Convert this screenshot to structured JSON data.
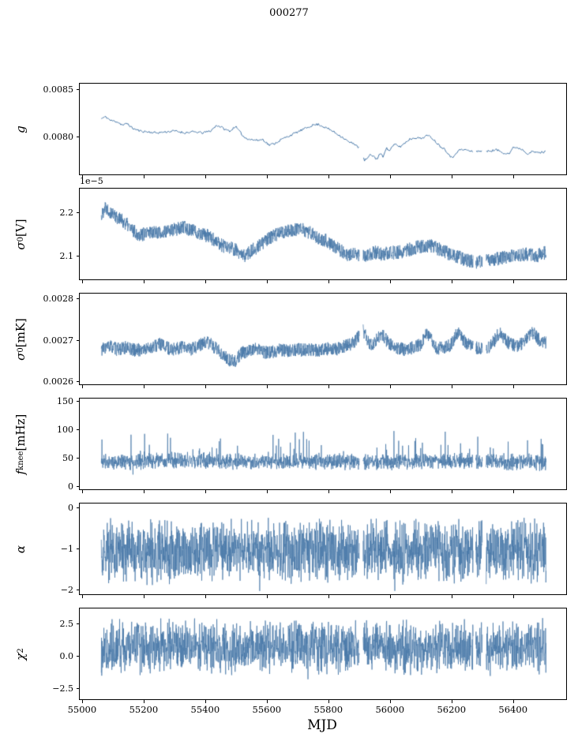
{
  "title": "000277",
  "chart_data": {
    "type": "line",
    "title": "000277",
    "line_color": "#4878a8",
    "grid": false,
    "legend": "none",
    "x": {
      "label": "MJD",
      "lim": [
        54990,
        56570
      ],
      "data_start": 55060,
      "data_end": 56505,
      "gaps": [
        [
          55898,
          55910
        ],
        [
          56268,
          56276
        ],
        [
          56298,
          56310
        ]
      ],
      "ticks": [
        {
          "v": 55000,
          "label": "55000"
        },
        {
          "v": 55200,
          "label": "55200"
        },
        {
          "v": 55400,
          "label": "55400"
        },
        {
          "v": 55600,
          "label": "55600"
        },
        {
          "v": 55800,
          "label": "55800"
        },
        {
          "v": 56000,
          "label": "56000"
        },
        {
          "v": 56200,
          "label": "56200"
        },
        {
          "v": 56400,
          "label": "56400"
        }
      ]
    },
    "panels": [
      {
        "name": "g",
        "ylabel_text": "g",
        "label": {
          "it": "g"
        },
        "ylim": [
          0.0076,
          0.00856
        ],
        "yticks": [
          {
            "v": 0.0085,
            "label": "0.0085"
          },
          {
            "v": 0.008,
            "label": "0.0080"
          }
        ],
        "noise": 1.2e-05,
        "noise_type": "uniform",
        "trend": [
          [
            55060,
            0.00819
          ],
          [
            55075,
            0.00821
          ],
          [
            55090,
            0.00817
          ],
          [
            55110,
            0.00816
          ],
          [
            55130,
            0.00812
          ],
          [
            55145,
            0.00814
          ],
          [
            55160,
            0.00809
          ],
          [
            55185,
            0.00806
          ],
          [
            55210,
            0.00805
          ],
          [
            55240,
            0.00804
          ],
          [
            55270,
            0.00805
          ],
          [
            55300,
            0.00806
          ],
          [
            55330,
            0.00804
          ],
          [
            55360,
            0.00805
          ],
          [
            55390,
            0.00804
          ],
          [
            55415,
            0.00806
          ],
          [
            55435,
            0.00812
          ],
          [
            55450,
            0.0081
          ],
          [
            55465,
            0.00807
          ],
          [
            55480,
            0.00806
          ],
          [
            55495,
            0.00811
          ],
          [
            55510,
            0.00805
          ],
          [
            55525,
            0.00799
          ],
          [
            55545,
            0.00797
          ],
          [
            55565,
            0.00796
          ],
          [
            55585,
            0.00797
          ],
          [
            55605,
            0.00791
          ],
          [
            55625,
            0.00793
          ],
          [
            55645,
            0.00797
          ],
          [
            55665,
            0.008
          ],
          [
            55685,
            0.00803
          ],
          [
            55705,
            0.00806
          ],
          [
            55725,
            0.00809
          ],
          [
            55745,
            0.00812
          ],
          [
            55765,
            0.00813
          ],
          [
            55785,
            0.0081
          ],
          [
            55805,
            0.00807
          ],
          [
            55825,
            0.00803
          ],
          [
            55845,
            0.00799
          ],
          [
            55865,
            0.00794
          ],
          [
            55885,
            0.00792
          ],
          [
            55900,
            0.00787
          ],
          [
            55908,
            0.00779
          ],
          [
            55915,
            0.00775
          ],
          [
            55925,
            0.00777
          ],
          [
            55935,
            0.00781
          ],
          [
            55945,
            0.00779
          ],
          [
            55955,
            0.00776
          ],
          [
            55965,
            0.00782
          ],
          [
            55975,
            0.00779
          ],
          [
            55985,
            0.00788
          ],
          [
            55995,
            0.00785
          ],
          [
            56005,
            0.00789
          ],
          [
            56015,
            0.00792
          ],
          [
            56030,
            0.00789
          ],
          [
            56045,
            0.00793
          ],
          [
            56060,
            0.00797
          ],
          [
            56080,
            0.00799
          ],
          [
            56100,
            0.00798
          ],
          [
            56115,
            0.00801
          ],
          [
            56130,
            0.008
          ],
          [
            56145,
            0.00795
          ],
          [
            56160,
            0.0079
          ],
          [
            56175,
            0.00787
          ],
          [
            56190,
            0.00781
          ],
          [
            56200,
            0.00777
          ],
          [
            56212,
            0.00783
          ],
          [
            56225,
            0.00786
          ],
          [
            56245,
            0.00786
          ],
          [
            56265,
            0.00784
          ],
          [
            56285,
            0.00785
          ],
          [
            56305,
            0.00784
          ],
          [
            56325,
            0.00785
          ],
          [
            56345,
            0.00786
          ],
          [
            56365,
            0.00783
          ],
          [
            56385,
            0.00782
          ],
          [
            56400,
            0.00789
          ],
          [
            56415,
            0.00788
          ],
          [
            56430,
            0.00786
          ],
          [
            56445,
            0.00782
          ],
          [
            56460,
            0.00784
          ],
          [
            56480,
            0.00783
          ],
          [
            56505,
            0.00784
          ]
        ]
      },
      {
        "name": "sigma0_V",
        "ylabel_text": "σ0 [V]",
        "label": {
          "it": "σ",
          "sub": "0",
          "post": " [V]"
        },
        "offset": "1e−5",
        "ylim": [
          2.046,
          2.255
        ],
        "yticks": [
          {
            "v": 2.2,
            "label": "2.2"
          },
          {
            "v": 2.1,
            "label": "2.1"
          }
        ],
        "noise": 0.016,
        "noise_type": "uniform",
        "trend": [
          [
            55060,
            2.19
          ],
          [
            55072,
            2.215
          ],
          [
            55085,
            2.205
          ],
          [
            55100,
            2.195
          ],
          [
            55120,
            2.185
          ],
          [
            55140,
            2.175
          ],
          [
            55160,
            2.16
          ],
          [
            55180,
            2.15
          ],
          [
            55205,
            2.15
          ],
          [
            55230,
            2.158
          ],
          [
            55255,
            2.152
          ],
          [
            55280,
            2.158
          ],
          [
            55305,
            2.162
          ],
          [
            55330,
            2.165
          ],
          [
            55355,
            2.16
          ],
          [
            55380,
            2.152
          ],
          [
            55405,
            2.146
          ],
          [
            55430,
            2.135
          ],
          [
            55455,
            2.123
          ],
          [
            55480,
            2.118
          ],
          [
            55500,
            2.112
          ],
          [
            55518,
            2.098
          ],
          [
            55535,
            2.105
          ],
          [
            55555,
            2.115
          ],
          [
            55575,
            2.125
          ],
          [
            55595,
            2.135
          ],
          [
            55615,
            2.145
          ],
          [
            55640,
            2.153
          ],
          [
            55665,
            2.158
          ],
          [
            55690,
            2.162
          ],
          [
            55715,
            2.16
          ],
          [
            55740,
            2.152
          ],
          [
            55765,
            2.143
          ],
          [
            55790,
            2.135
          ],
          [
            55815,
            2.124
          ],
          [
            55840,
            2.112
          ],
          [
            55862,
            2.1
          ],
          [
            55880,
            2.104
          ],
          [
            55900,
            2.098
          ],
          [
            55925,
            2.103
          ],
          [
            55950,
            2.108
          ],
          [
            55975,
            2.104
          ],
          [
            56000,
            2.107
          ],
          [
            56025,
            2.109
          ],
          [
            56050,
            2.112
          ],
          [
            56075,
            2.118
          ],
          [
            56100,
            2.122
          ],
          [
            56125,
            2.124
          ],
          [
            56150,
            2.118
          ],
          [
            56175,
            2.11
          ],
          [
            56200,
            2.102
          ],
          [
            56225,
            2.096
          ],
          [
            56250,
            2.09
          ],
          [
            56275,
            2.086
          ],
          [
            56300,
            2.086
          ],
          [
            56325,
            2.09
          ],
          [
            56350,
            2.094
          ],
          [
            56375,
            2.098
          ],
          [
            56400,
            2.1
          ],
          [
            56425,
            2.102
          ],
          [
            56450,
            2.104
          ],
          [
            56475,
            2.1
          ],
          [
            56505,
            2.108
          ]
        ]
      },
      {
        "name": "sigma0_mK",
        "ylabel_text": "σ0 [mK]",
        "label": {
          "it": "σ",
          "sub": "0",
          "post": " [mK]"
        },
        "ylim": [
          0.002594,
          0.002812
        ],
        "yticks": [
          {
            "v": 0.0028,
            "label": "0.0028"
          },
          {
            "v": 0.0027,
            "label": "0.0027"
          },
          {
            "v": 0.0026,
            "label": "0.0026"
          }
        ],
        "noise": 1.6e-05,
        "noise_type": "uniform",
        "trend": [
          [
            55060,
            0.002678
          ],
          [
            55090,
            0.002686
          ],
          [
            55110,
            0.002678
          ],
          [
            55140,
            0.002682
          ],
          [
            55170,
            0.002676
          ],
          [
            55200,
            0.002678
          ],
          [
            55230,
            0.002684
          ],
          [
            55250,
            0.002692
          ],
          [
            55265,
            0.002684
          ],
          [
            55290,
            0.002678
          ],
          [
            55320,
            0.002682
          ],
          [
            55350,
            0.002678
          ],
          [
            55380,
            0.002688
          ],
          [
            55400,
            0.002696
          ],
          [
            55420,
            0.002688
          ],
          [
            55445,
            0.002672
          ],
          [
            55470,
            0.002654
          ],
          [
            55495,
            0.00265
          ],
          [
            55515,
            0.002668
          ],
          [
            55540,
            0.002676
          ],
          [
            55565,
            0.00268
          ],
          [
            55590,
            0.00267
          ],
          [
            55615,
            0.002672
          ],
          [
            55640,
            0.002678
          ],
          [
            55665,
            0.002674
          ],
          [
            55690,
            0.002678
          ],
          [
            55715,
            0.002676
          ],
          [
            55740,
            0.002678
          ],
          [
            55765,
            0.002674
          ],
          [
            55790,
            0.00268
          ],
          [
            55815,
            0.002676
          ],
          [
            55840,
            0.002684
          ],
          [
            55865,
            0.002688
          ],
          [
            55885,
            0.002696
          ],
          [
            55898,
            0.002712
          ],
          [
            55908,
            0.002728
          ],
          [
            55918,
            0.002712
          ],
          [
            55932,
            0.002692
          ],
          [
            55945,
            0.002688
          ],
          [
            55958,
            0.002708
          ],
          [
            55972,
            0.002716
          ],
          [
            55985,
            0.0027
          ],
          [
            56000,
            0.00269
          ],
          [
            56020,
            0.002682
          ],
          [
            56045,
            0.002678
          ],
          [
            56070,
            0.002682
          ],
          [
            56095,
            0.002688
          ],
          [
            56110,
            0.00271
          ],
          [
            56120,
            0.002718
          ],
          [
            56132,
            0.0027
          ],
          [
            56150,
            0.002682
          ],
          [
            56170,
            0.00268
          ],
          [
            56195,
            0.002688
          ],
          [
            56212,
            0.002712
          ],
          [
            56222,
            0.002718
          ],
          [
            56235,
            0.0027
          ],
          [
            56255,
            0.002688
          ],
          [
            56275,
            0.002682
          ],
          [
            56300,
            0.002678
          ],
          [
            56320,
            0.002684
          ],
          [
            56338,
            0.0027
          ],
          [
            56352,
            0.002718
          ],
          [
            56365,
            0.002708
          ],
          [
            56385,
            0.002692
          ],
          [
            56405,
            0.002686
          ],
          [
            56425,
            0.002692
          ],
          [
            56445,
            0.002704
          ],
          [
            56458,
            0.00272
          ],
          [
            56470,
            0.002712
          ],
          [
            56485,
            0.002698
          ],
          [
            56505,
            0.002696
          ]
        ]
      },
      {
        "name": "f_knee",
        "ylabel_text": "fknee [mHz]",
        "label": {
          "it": "f",
          "sub": "knee",
          "post": " [mHz]"
        },
        "ylim": [
          -5,
          155
        ],
        "yticks": [
          {
            "v": 150,
            "label": "150"
          },
          {
            "v": 100,
            "label": "100"
          },
          {
            "v": 50,
            "label": "50"
          },
          {
            "v": 0,
            "label": "0"
          }
        ],
        "noise": 16,
        "noise_type": "tri",
        "spikes": {
          "prob": 0.05,
          "amp": 48,
          "neg_frac": 0.05
        },
        "clip": [
          21,
          112
        ],
        "trend": [
          [
            55060,
            42
          ],
          [
            55300,
            46
          ],
          [
            55600,
            44
          ],
          [
            55900,
            43
          ],
          [
            56200,
            45
          ],
          [
            56505,
            42
          ]
        ]
      },
      {
        "name": "alpha",
        "ylabel_text": "α",
        "label": {
          "it": "α"
        },
        "ylim": [
          -2.1,
          0.1
        ],
        "yticks": [
          {
            "v": 0,
            "label": "0"
          },
          {
            "v": -1,
            "label": "−1"
          },
          {
            "v": -2,
            "label": "−2"
          }
        ],
        "noise": 0.85,
        "noise_type": "tri",
        "spikes": {
          "prob": 0.03,
          "amp": 0.3,
          "neg_frac": 0.5
        },
        "clip": [
          -2.02,
          -0.12
        ],
        "trend": [
          [
            55060,
            -1.05
          ],
          [
            56505,
            -1.05
          ]
        ]
      },
      {
        "name": "chi2",
        "ylabel_text": "χ2",
        "label": {
          "it": "χ",
          "sup": "2"
        },
        "ylim": [
          -3.3,
          3.7
        ],
        "yticks": [
          {
            "v": 2.5,
            "label": "2.5"
          },
          {
            "v": 0.0,
            "label": "0.0"
          },
          {
            "v": -2.5,
            "label": "−2.5"
          }
        ],
        "noise": 2.3,
        "noise_type": "tri",
        "spikes": {
          "prob": 0.02,
          "amp": 0.6,
          "neg_frac": 0.5
        },
        "clip": [
          -2.9,
          3.4
        ],
        "trend": [
          [
            55060,
            0.7
          ],
          [
            55400,
            0.75
          ],
          [
            55800,
            0.7
          ],
          [
            56200,
            0.72
          ],
          [
            56505,
            0.7
          ]
        ]
      }
    ]
  }
}
